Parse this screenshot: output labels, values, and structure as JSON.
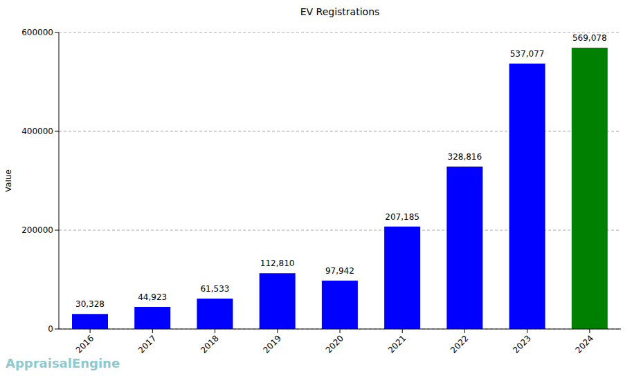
{
  "chart_data": {
    "type": "bar",
    "title": "EV Registrations",
    "y_label": "Value",
    "categories": [
      "2016",
      "2017",
      "2018",
      "2019",
      "2020",
      "2021",
      "2022",
      "2023",
      "2024"
    ],
    "values": [
      30328,
      44923,
      61533,
      112810,
      97942,
      207185,
      328816,
      537077,
      569078
    ],
    "value_labels": [
      "30,328",
      "44,923",
      "61,533",
      "112,810",
      "97,942",
      "207,185",
      "328,816",
      "537,077",
      "569,078"
    ],
    "data_labels": true,
    "colors": [
      "#0000ff",
      "#0000ff",
      "#0000ff",
      "#0000ff",
      "#0000ff",
      "#0000ff",
      "#0000ff",
      "#0000ff",
      "#008000"
    ],
    "ylim": [
      0,
      600000
    ],
    "yticks": [
      0,
      200000,
      400000,
      600000
    ],
    "grid": true,
    "annotations": [
      "AppraisalEngine"
    ]
  }
}
